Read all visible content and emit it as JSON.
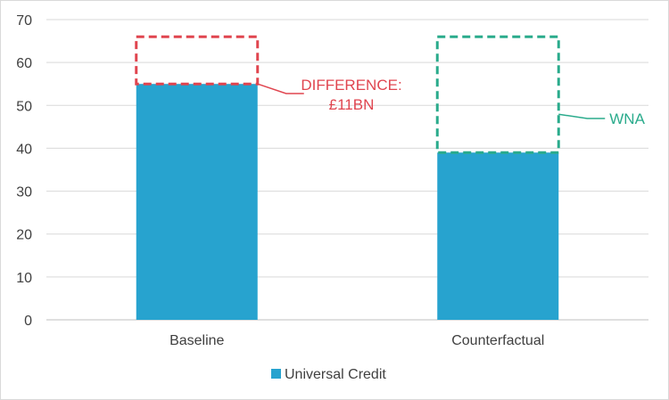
{
  "chart_data": {
    "type": "bar",
    "categories": [
      "Baseline",
      "Counterfactual"
    ],
    "series": [
      {
        "name": "Universal Credit",
        "values": [
          55,
          39
        ],
        "color": "#27a3cf"
      }
    ],
    "ylim": [
      0,
      70
    ],
    "yticks": [
      0,
      10,
      20,
      30,
      40,
      50,
      60,
      70
    ],
    "grid": true,
    "legend_position": "bottom",
    "title": "",
    "xlabel": "",
    "ylabel": "",
    "outlines": [
      {
        "category": "Baseline",
        "from": 55,
        "to": 66,
        "color": "#e0454f",
        "style": "dashed"
      },
      {
        "category": "Counterfactual",
        "from": 39,
        "to": 66,
        "color": "#2aab8c",
        "style": "dashed"
      }
    ],
    "annotations": [
      {
        "lines": [
          "DIFFERENCE:",
          "£11BN"
        ],
        "color": "#e0454f",
        "target": "Baseline"
      },
      {
        "lines": [
          "WNA"
        ],
        "color": "#2aab8c",
        "target": "Counterfactual"
      }
    ]
  }
}
